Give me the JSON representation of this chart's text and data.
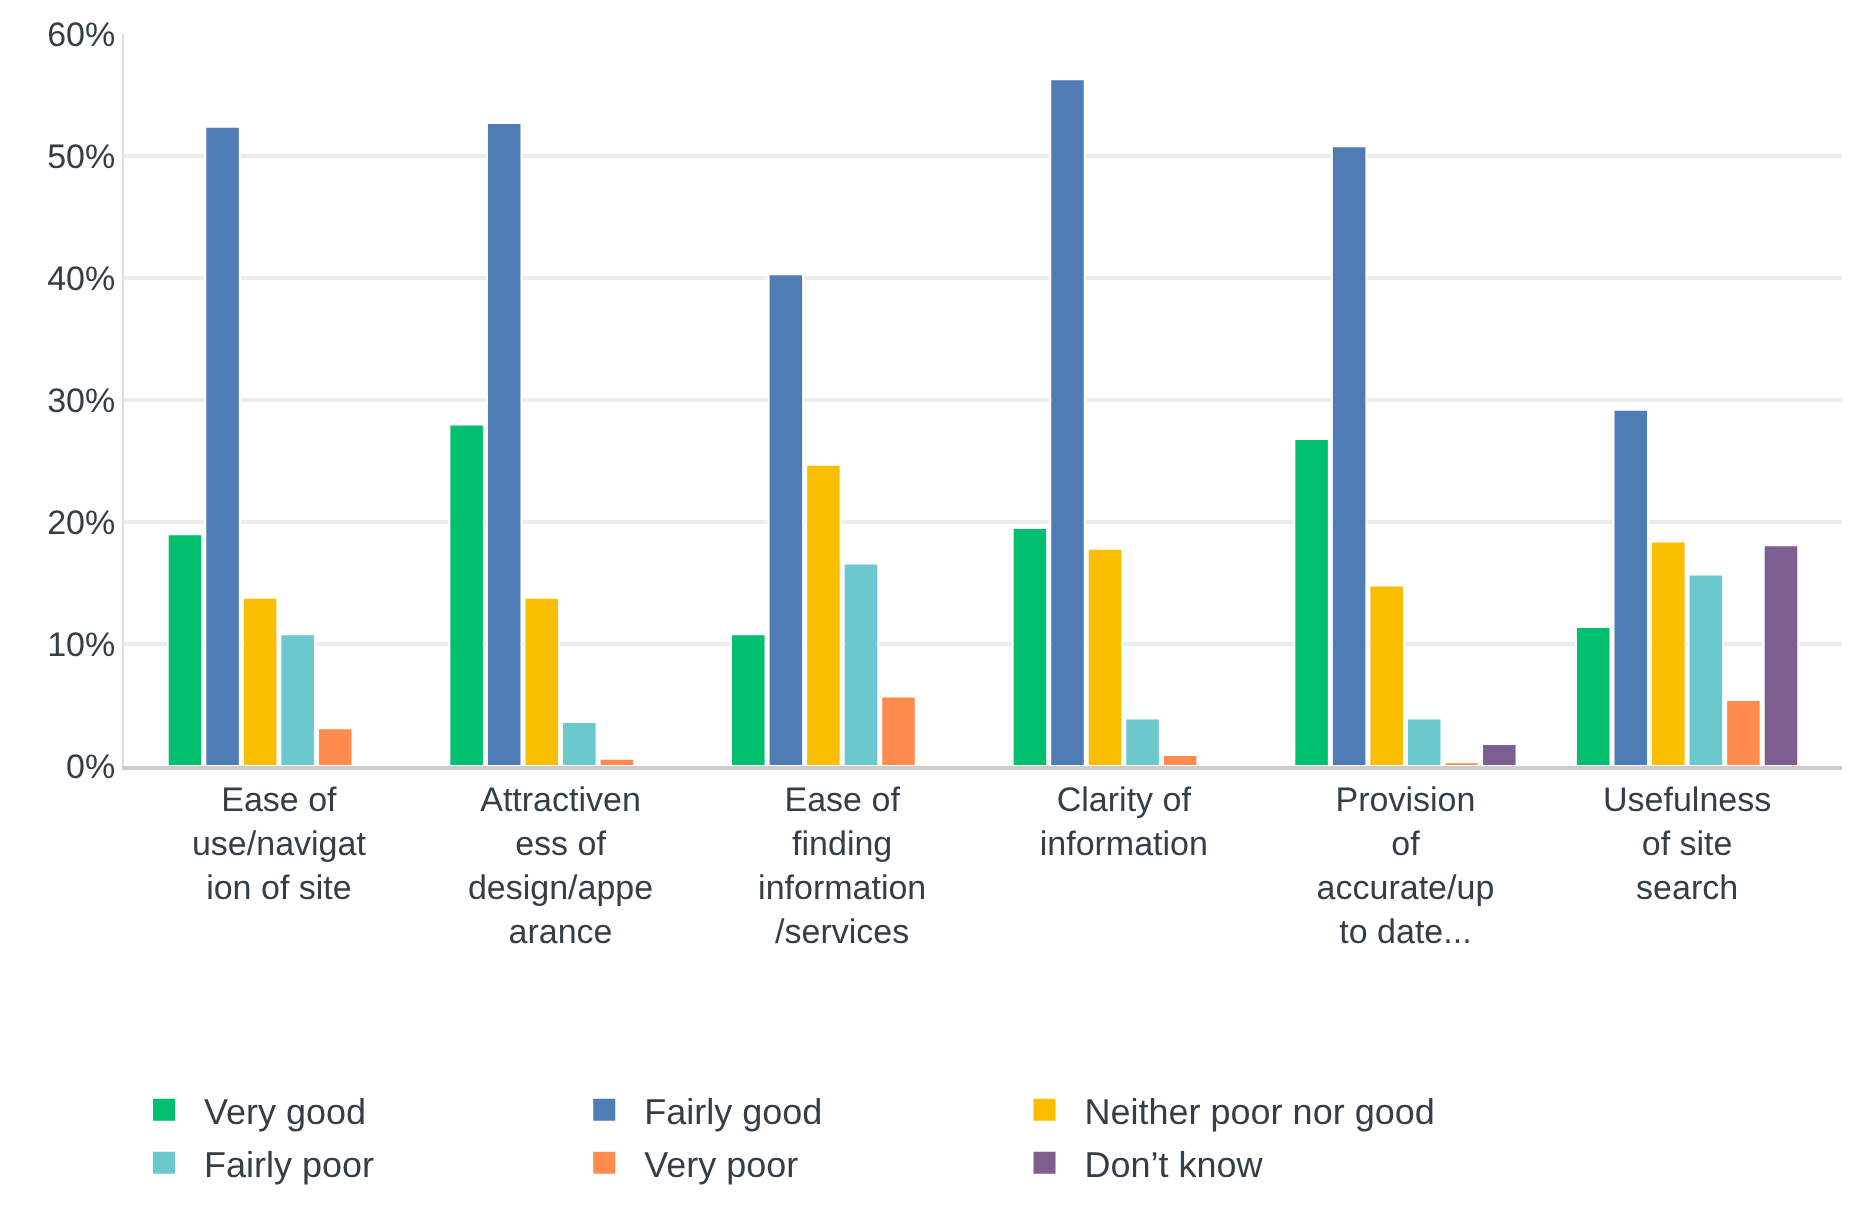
{
  "chart_data": {
    "type": "bar",
    "categories": [
      "Ease of use/navigation of site",
      "Attractiveness of design/appearance",
      "Ease of finding information/services",
      "Clarity of information",
      "Provision of accurate/up to date...",
      "Usefulness of site search"
    ],
    "series": [
      {
        "name": "Very good",
        "color": "#00bf6f",
        "values": [
          19.0,
          28.0,
          10.8,
          19.5,
          26.8,
          11.4
        ]
      },
      {
        "name": "Fairly good",
        "color": "#507cb6",
        "values": [
          52.4,
          52.7,
          40.3,
          56.3,
          50.8,
          29.2
        ]
      },
      {
        "name": "Neither poor nor good",
        "color": "#f9be00",
        "values": [
          13.8,
          13.8,
          24.7,
          17.8,
          14.8,
          18.4
        ]
      },
      {
        "name": "Fairly poor",
        "color": "#6bc8cd",
        "values": [
          10.8,
          3.6,
          16.6,
          3.9,
          3.9,
          15.7
        ]
      },
      {
        "name": "Very poor",
        "color": "#ff8b4f",
        "values": [
          3.1,
          0.6,
          5.7,
          0.9,
          0.3,
          5.4
        ]
      },
      {
        "name": "Don’t know",
        "color": "#7d5e90",
        "values": [
          null,
          null,
          null,
          null,
          1.8,
          18.1
        ]
      }
    ],
    "ylim": [
      0,
      60
    ],
    "yticks": [
      {
        "value": 0,
        "label": "0%"
      },
      {
        "value": 10,
        "label": "10%"
      },
      {
        "value": 20,
        "label": "20%"
      },
      {
        "value": 30,
        "label": "30%"
      },
      {
        "value": 40,
        "label": "40%"
      },
      {
        "value": 50,
        "label": "50%"
      },
      {
        "value": 60,
        "label": "60%"
      }
    ],
    "grid": "y",
    "legend": "bottom"
  }
}
